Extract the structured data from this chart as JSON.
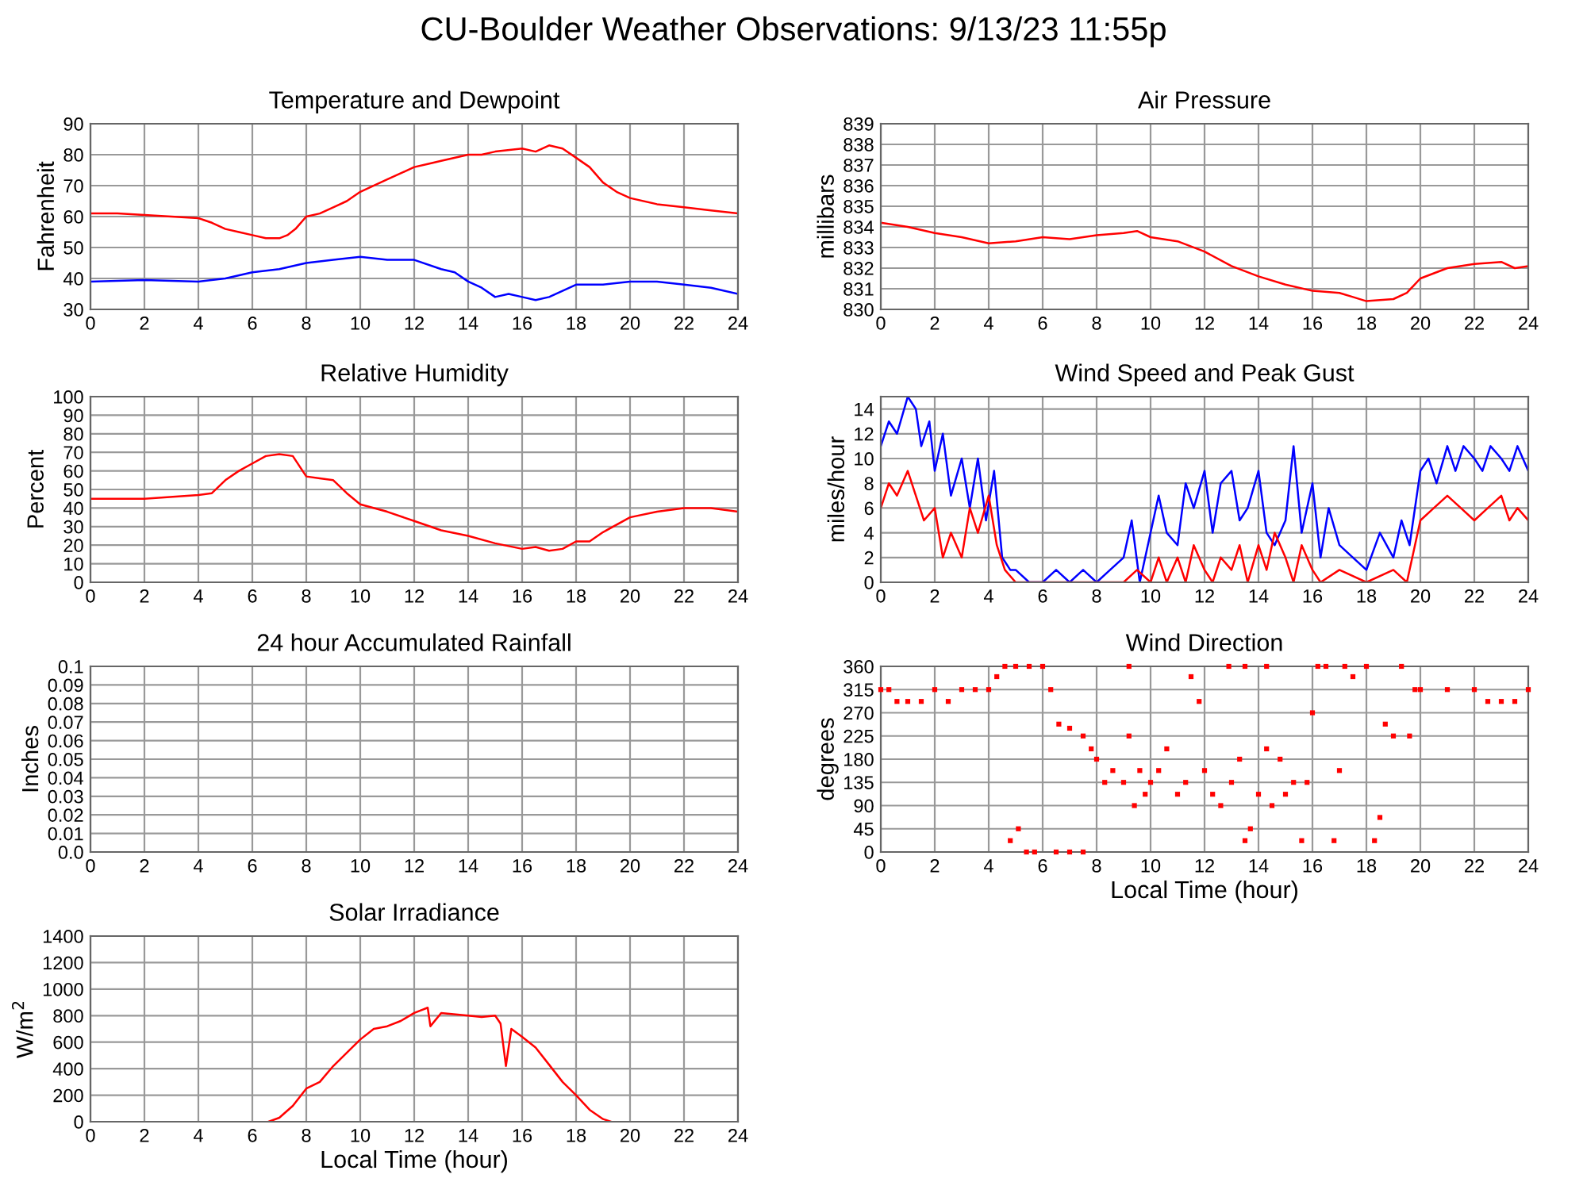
{
  "chart_data": [
    {
      "type": "other",
      "title": "CU-Boulder Weather Observations: 9/13/23 11:55p"
    },
    {
      "type": "line",
      "title": "Temperature and Dewpoint",
      "ylabel": "Fahrenheit",
      "xlim": [
        0,
        24
      ],
      "xticks": [
        0,
        2,
        4,
        6,
        8,
        10,
        12,
        14,
        16,
        18,
        20,
        22,
        24
      ],
      "ylim": [
        30,
        90
      ],
      "yticks": [
        30,
        40,
        50,
        60,
        70,
        80,
        90
      ],
      "grid": true,
      "series": [
        {
          "color": "#ff0000",
          "x": [
            0,
            1,
            2,
            3,
            4,
            4.5,
            5,
            5.5,
            6,
            6.5,
            7,
            7.3,
            7.6,
            8,
            8.5,
            9,
            9.5,
            10,
            11,
            12,
            12.5,
            13,
            14,
            14.5,
            15,
            16,
            16.5,
            17,
            17.5,
            18,
            18.5,
            19,
            19.5,
            20,
            21,
            22,
            23,
            24
          ],
          "values": [
            61,
            61,
            60.5,
            60,
            59.5,
            58,
            56,
            55,
            54,
            53,
            53,
            54,
            56,
            60,
            61,
            63,
            65,
            68,
            72,
            76,
            77,
            78,
            80,
            80,
            81,
            82,
            81,
            83,
            82,
            79,
            76,
            71,
            68,
            66,
            64,
            63,
            62,
            61
          ]
        },
        {
          "color": "#0000ff",
          "x": [
            0,
            2,
            4,
            5,
            6,
            7,
            8,
            9,
            10,
            11,
            12,
            13,
            13.5,
            14,
            14.5,
            15,
            15.5,
            16,
            16.5,
            17,
            17.5,
            18,
            19,
            20,
            21,
            22,
            23,
            24
          ],
          "values": [
            39,
            39.5,
            39,
            40,
            42,
            43,
            45,
            46,
            47,
            46,
            46,
            43,
            42,
            39,
            37,
            34,
            35,
            34,
            33,
            34,
            36,
            38,
            38,
            39,
            39,
            38,
            37,
            35
          ]
        }
      ]
    },
    {
      "type": "line",
      "title": "Air Pressure",
      "ylabel": "millibars",
      "xlim": [
        0,
        24
      ],
      "xticks": [
        0,
        2,
        4,
        6,
        8,
        10,
        12,
        14,
        16,
        18,
        20,
        22,
        24
      ],
      "ylim": [
        830,
        839
      ],
      "yticks": [
        830,
        831,
        832,
        833,
        834,
        835,
        836,
        837,
        838,
        839
      ],
      "grid": true,
      "series": [
        {
          "color": "#ff0000",
          "x": [
            0,
            1,
            2,
            3,
            4,
            5,
            6,
            7,
            8,
            9,
            9.5,
            10,
            11,
            12,
            13,
            14,
            15,
            16,
            17,
            17.5,
            18,
            19,
            19.5,
            20,
            21,
            22,
            23,
            23.5,
            24
          ],
          "values": [
            834.2,
            834,
            833.7,
            833.5,
            833.2,
            833.3,
            833.5,
            833.4,
            833.6,
            833.7,
            833.8,
            833.5,
            833.3,
            832.8,
            832.1,
            831.6,
            831.2,
            830.9,
            830.8,
            830.6,
            830.4,
            830.5,
            830.8,
            831.5,
            832,
            832.2,
            832.3,
            832,
            832.1
          ]
        }
      ]
    },
    {
      "type": "line",
      "title": "Relative Humidity",
      "ylabel": "Percent",
      "xlim": [
        0,
        24
      ],
      "xticks": [
        0,
        2,
        4,
        6,
        8,
        10,
        12,
        14,
        16,
        18,
        20,
        22,
        24
      ],
      "ylim": [
        0,
        100
      ],
      "yticks": [
        0,
        10,
        20,
        30,
        40,
        50,
        60,
        70,
        80,
        90,
        100
      ],
      "grid": true,
      "series": [
        {
          "color": "#ff0000",
          "x": [
            0,
            2,
            4,
            4.5,
            5,
            5.5,
            6,
            6.5,
            7,
            7.5,
            8,
            8.5,
            9,
            9.5,
            10,
            11,
            12,
            13,
            14,
            15,
            16,
            16.5,
            17,
            17.5,
            18,
            18.5,
            19,
            20,
            21,
            22,
            23,
            24
          ],
          "values": [
            45,
            45,
            47,
            48,
            55,
            60,
            64,
            68,
            69,
            68,
            57,
            56,
            55,
            48,
            42,
            38,
            33,
            28,
            25,
            21,
            18,
            19,
            17,
            18,
            22,
            22,
            27,
            35,
            38,
            40,
            40,
            38
          ]
        }
      ]
    },
    {
      "type": "line",
      "title": "Wind Speed and Peak Gust",
      "ylabel": "miles/hour",
      "xlim": [
        0,
        24
      ],
      "xticks": [
        0,
        2,
        4,
        6,
        8,
        10,
        12,
        14,
        16,
        18,
        20,
        22,
        24
      ],
      "ylim": [
        0,
        15
      ],
      "yticks": [
        0,
        2,
        4,
        6,
        8,
        10,
        12,
        14
      ],
      "grid": true,
      "series": [
        {
          "color": "#0000ff",
          "x": [
            0,
            0.3,
            0.6,
            1,
            1.3,
            1.5,
            1.8,
            2,
            2.3,
            2.6,
            3,
            3.3,
            3.6,
            3.9,
            4.2,
            4.5,
            4.8,
            5,
            5.5,
            6,
            6.5,
            7,
            7.5,
            8,
            8.5,
            9,
            9.3,
            9.6,
            10,
            10.3,
            10.6,
            11,
            11.3,
            11.6,
            12,
            12.3,
            12.6,
            13,
            13.3,
            13.6,
            14,
            14.3,
            14.6,
            15,
            15.3,
            15.6,
            16,
            16.3,
            16.6,
            17,
            17.5,
            18,
            18.5,
            19,
            19.3,
            19.6,
            20,
            20.3,
            20.6,
            21,
            21.3,
            21.6,
            22,
            22.3,
            22.6,
            23,
            23.3,
            23.6,
            24
          ],
          "values": [
            11,
            13,
            12,
            15,
            14,
            11,
            13,
            9,
            12,
            7,
            10,
            6,
            10,
            5,
            9,
            2,
            1,
            1,
            0,
            0,
            1,
            0,
            1,
            0,
            1,
            2,
            5,
            0,
            4,
            7,
            4,
            3,
            8,
            6,
            9,
            4,
            8,
            9,
            5,
            6,
            9,
            4,
            3,
            5,
            11,
            4,
            8,
            2,
            6,
            3,
            2,
            1,
            4,
            2,
            5,
            3,
            9,
            10,
            8,
            11,
            9,
            11,
            10,
            9,
            11,
            10,
            9,
            11,
            9
          ]
        },
        {
          "color": "#ff0000",
          "x": [
            0,
            0.3,
            0.6,
            1,
            1.3,
            1.6,
            2,
            2.3,
            2.6,
            3,
            3.3,
            3.6,
            4,
            4.3,
            4.6,
            5,
            6,
            7,
            8,
            9,
            9.5,
            10,
            10.3,
            10.6,
            11,
            11.3,
            11.6,
            12,
            12.3,
            12.6,
            13,
            13.3,
            13.6,
            14,
            14.3,
            14.6,
            15,
            15.3,
            15.6,
            16,
            16.3,
            17,
            18,
            19,
            19.5,
            20,
            20.5,
            21,
            21.5,
            22,
            22.5,
            23,
            23.3,
            23.6,
            24
          ],
          "values": [
            6,
            8,
            7,
            9,
            7,
            5,
            6,
            2,
            4,
            2,
            6,
            4,
            7,
            3,
            1,
            0,
            0,
            0,
            0,
            0,
            1,
            0,
            2,
            0,
            2,
            0,
            3,
            1,
            0,
            2,
            1,
            3,
            0,
            3,
            1,
            4,
            2,
            0,
            3,
            1,
            0,
            1,
            0,
            1,
            0,
            5,
            6,
            7,
            6,
            5,
            6,
            7,
            5,
            6,
            5
          ]
        }
      ]
    },
    {
      "type": "line",
      "title": "24 hour Accumulated Rainfall",
      "ylabel": "Inches",
      "xlim": [
        0,
        24
      ],
      "xticks": [
        0,
        2,
        4,
        6,
        8,
        10,
        12,
        14,
        16,
        18,
        20,
        22,
        24
      ],
      "ylim": [
        0,
        0.1
      ],
      "yticks": [
        {
          "value": 0,
          "label": "0.0"
        },
        0.01,
        0.02,
        0.03,
        0.04,
        0.05,
        0.06,
        0.07,
        0.08,
        0.09,
        0.1
      ],
      "grid": true
    },
    {
      "type": "scatter",
      "title": "Wind Direction",
      "ylabel": "degrees",
      "xlabel": "Local Time (hour)",
      "xlim": [
        0,
        24
      ],
      "xticks": [
        0,
        2,
        4,
        6,
        8,
        10,
        12,
        14,
        16,
        18,
        20,
        22,
        24
      ],
      "ylim": [
        0,
        360
      ],
      "yticks": [
        0,
        45,
        90,
        135,
        180,
        225,
        270,
        315,
        360
      ],
      "grid": true,
      "marker": "square",
      "series": [
        {
          "color": "#ff0000",
          "x": [
            0,
            0.3,
            0.6,
            1,
            1.5,
            2,
            2.5,
            3,
            3.5,
            4,
            4.3,
            4.6,
            5,
            5.5,
            6,
            6.3,
            4.8,
            5.1,
            5.4,
            5.7,
            6.5,
            7,
            7.5,
            6.6,
            7,
            7.5,
            7.8,
            8,
            8.3,
            8.6,
            9,
            9.2,
            9.4,
            9.6,
            9.8,
            10,
            10.3,
            10.6,
            11,
            11.3,
            11.5,
            11.8,
            12,
            12.3,
            12.6,
            13,
            13.3,
            13.5,
            13.7,
            14,
            14.3,
            14.5,
            14.8,
            15,
            15.3,
            15.6,
            15.8,
            16,
            16.2,
            16.5,
            16.8,
            17,
            17.2,
            17.5,
            18,
            18.3,
            18.5,
            18.7,
            19,
            19.3,
            19.6,
            19.8,
            20,
            21,
            22,
            22.5,
            23,
            23.5,
            24,
            9.2,
            12.9,
            13.5,
            14.3
          ],
          "values": [
            315,
            315,
            292,
            292,
            292,
            315,
            292,
            315,
            315,
            315,
            340,
            360,
            360,
            360,
            360,
            315,
            22,
            45,
            0,
            0,
            0,
            0,
            0,
            248,
            240,
            225,
            200,
            180,
            135,
            158,
            135,
            225,
            90,
            158,
            112,
            135,
            158,
            200,
            112,
            135,
            340,
            292,
            158,
            112,
            90,
            135,
            180,
            22,
            45,
            112,
            200,
            90,
            180,
            112,
            135,
            22,
            135,
            270,
            360,
            360,
            22,
            158,
            360,
            340,
            360,
            22,
            67,
            248,
            225,
            360,
            225,
            315,
            315,
            315,
            315,
            292,
            292,
            292,
            315,
            360,
            360,
            360,
            360
          ]
        }
      ]
    },
    {
      "type": "line",
      "title": "Solar Irradiance",
      "ylabel": "W/m$^{2}$",
      "xlabel": "Local Time (hour)",
      "xlim": [
        0,
        24
      ],
      "xticks": [
        0,
        2,
        4,
        6,
        8,
        10,
        12,
        14,
        16,
        18,
        20,
        22,
        24
      ],
      "ylim": [
        0,
        1400
      ],
      "yticks": [
        0,
        200,
        400,
        600,
        800,
        1000,
        1200,
        1400
      ],
      "grid": true,
      "series": [
        {
          "color": "#ff0000",
          "x": [
            6.6,
            7,
            7.5,
            8,
            8.5,
            9,
            9.5,
            10,
            10.5,
            11,
            11.5,
            12,
            12.5,
            12.6,
            13,
            14,
            14.5,
            15,
            15.2,
            15.4,
            15.6,
            16,
            16.5,
            17,
            17.5,
            18,
            18.5,
            19,
            19.3
          ],
          "values": [
            0,
            30,
            120,
            250,
            300,
            420,
            520,
            620,
            700,
            720,
            760,
            820,
            860,
            720,
            820,
            800,
            790,
            800,
            740,
            420,
            700,
            640,
            560,
            430,
            300,
            200,
            90,
            20,
            0
          ]
        }
      ]
    }
  ]
}
